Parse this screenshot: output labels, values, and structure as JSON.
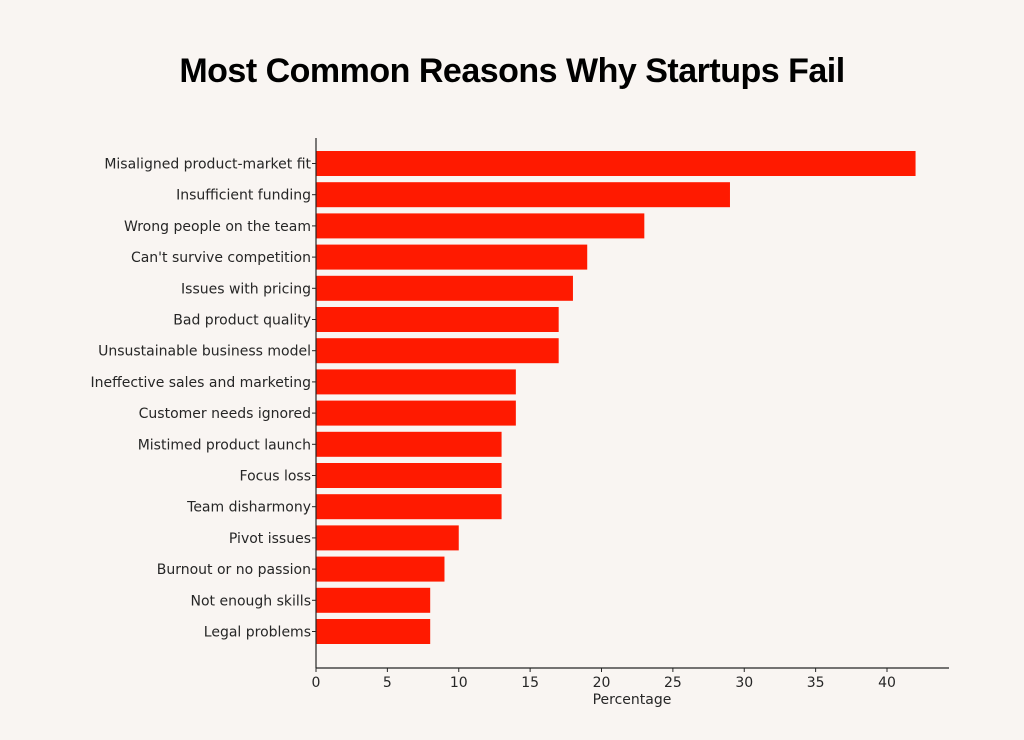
{
  "chart_data": {
    "type": "bar",
    "orientation": "horizontal",
    "title": "Most Common Reasons Why Startups Fail",
    "xlabel": "Percentage",
    "ylabel": "",
    "categories": [
      "Misaligned product-market fit",
      "Insufficient funding",
      "Wrong people on the team",
      "Can't survive competition",
      "Issues with pricing",
      "Bad product quality",
      "Unsustainable business model",
      "Ineffective sales and marketing",
      "Customer needs ignored",
      "Mistimed product launch",
      "Focus loss",
      "Team disharmony",
      "Pivot issues",
      "Burnout or no passion",
      "Not enough skills",
      "Legal problems"
    ],
    "values": [
      42,
      29,
      23,
      19,
      18,
      17,
      17,
      14,
      14,
      13,
      13,
      13,
      10,
      9,
      8,
      8
    ],
    "xlim": [
      0,
      44.1
    ],
    "xticks": [
      0,
      5,
      10,
      15,
      20,
      25,
      30,
      35,
      40
    ],
    "grid": false,
    "legend": "none",
    "bar_color": "#ff1a00",
    "background": "#f9f5f2"
  }
}
